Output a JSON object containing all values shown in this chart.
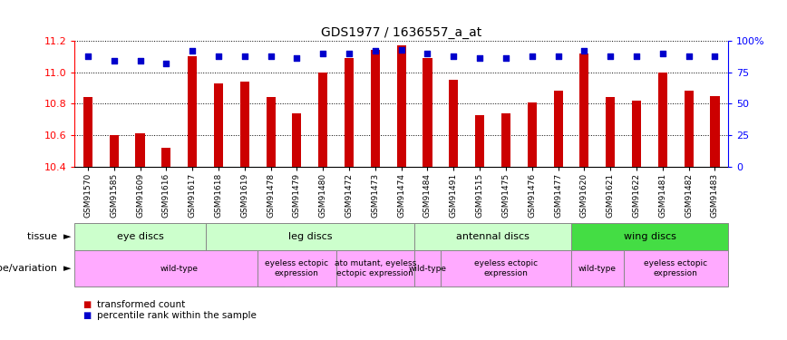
{
  "title": "GDS1977 / 1636557_a_at",
  "samples": [
    "GSM91570",
    "GSM91585",
    "GSM91609",
    "GSM91616",
    "GSM91617",
    "GSM91618",
    "GSM91619",
    "GSM91478",
    "GSM91479",
    "GSM91480",
    "GSM91472",
    "GSM91473",
    "GSM91474",
    "GSM91484",
    "GSM91491",
    "GSM91515",
    "GSM91475",
    "GSM91476",
    "GSM91477",
    "GSM91620",
    "GSM91621",
    "GSM91622",
    "GSM91481",
    "GSM91482",
    "GSM91483"
  ],
  "bar_values": [
    10.84,
    10.6,
    10.61,
    10.52,
    11.1,
    10.93,
    10.94,
    10.84,
    10.74,
    11.0,
    11.09,
    11.14,
    11.17,
    11.09,
    10.95,
    10.73,
    10.74,
    10.81,
    10.88,
    11.12,
    10.84,
    10.82,
    11.0,
    10.88,
    10.85
  ],
  "percentile_values": [
    88,
    84,
    84,
    82,
    92,
    88,
    88,
    88,
    86,
    90,
    90,
    92,
    93,
    90,
    88,
    86,
    86,
    88,
    88,
    92,
    88,
    88,
    90,
    88,
    88
  ],
  "ymin": 10.4,
  "ymax": 11.2,
  "yticks": [
    10.4,
    10.6,
    10.8,
    11.0,
    11.2
  ],
  "right_yticks": [
    0,
    25,
    50,
    75,
    100
  ],
  "bar_color": "#cc0000",
  "dot_color": "#0000cc",
  "tissue_row_label": "tissue",
  "genotype_row_label": "genotype/variation",
  "tissue_groups": [
    {
      "label": "eye discs",
      "start": 0,
      "end": 4,
      "color": "#ccffcc"
    },
    {
      "label": "leg discs",
      "start": 5,
      "end": 12,
      "color": "#ccffcc"
    },
    {
      "label": "antennal discs",
      "start": 13,
      "end": 18,
      "color": "#ccffcc"
    },
    {
      "label": "wing discs",
      "start": 19,
      "end": 24,
      "color": "#44dd44"
    }
  ],
  "genotype_groups": [
    {
      "label": "wild-type",
      "start": 0,
      "end": 7,
      "color": "#ffaaff"
    },
    {
      "label": "eyeless ectopic\nexpression",
      "start": 7,
      "end": 9,
      "color": "#ffaaff"
    },
    {
      "label": "ato mutant, eyeless\nectopic expression",
      "start": 10,
      "end": 12,
      "color": "#ffaaff"
    },
    {
      "label": "wild-type",
      "start": 13,
      "end": 13,
      "color": "#ffaaff"
    },
    {
      "label": "eyeless ectopic\nexpression",
      "start": 14,
      "end": 18,
      "color": "#ffaaff"
    },
    {
      "label": "wild-type",
      "start": 19,
      "end": 20,
      "color": "#ffaaff"
    },
    {
      "label": "eyeless ectopic\nexpression",
      "start": 21,
      "end": 24,
      "color": "#ffaaff"
    }
  ]
}
